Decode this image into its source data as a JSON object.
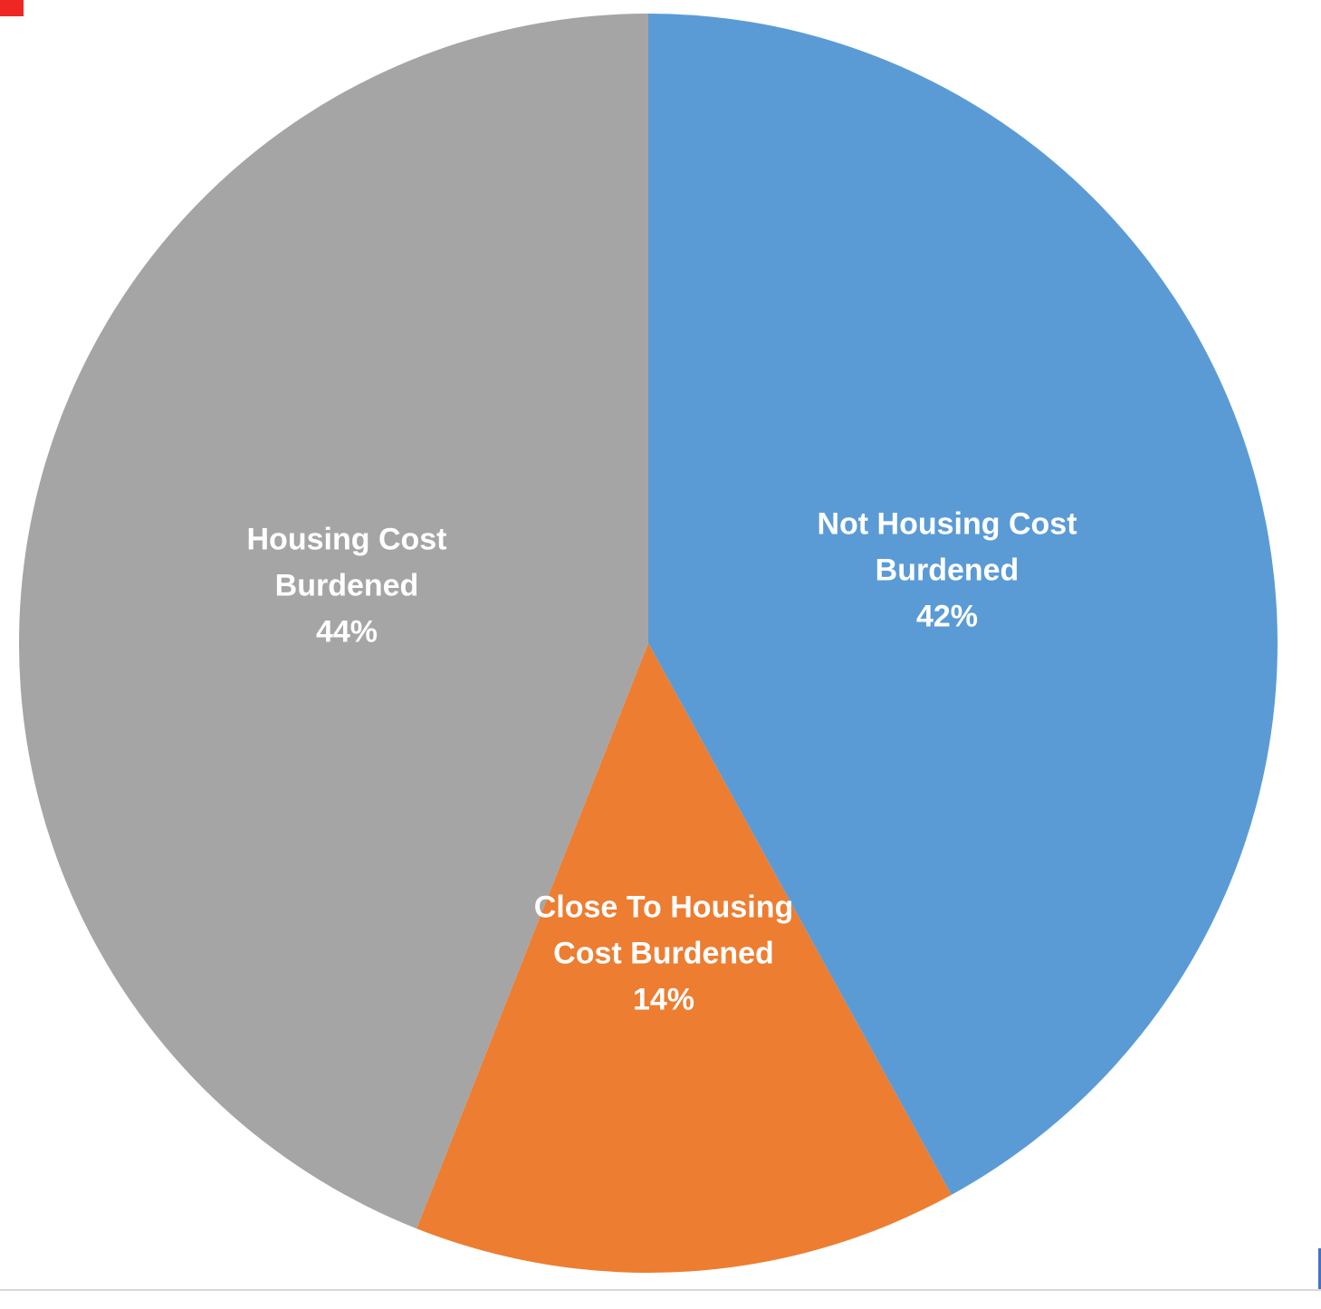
{
  "page": {
    "background": "#FFFFFF"
  },
  "artifacts": {
    "corner_marker_color": "#EE2724",
    "bottom_divider_color": "#D8D8D8",
    "right_edge_accent_color": "#4472C4"
  },
  "chart_data": {
    "type": "pie",
    "title": "",
    "legend": "none",
    "grid": "off",
    "start_angle_deg": 0,
    "direction": "clockwise",
    "data_labels": "inside",
    "data_label_color": "#FFFFFF",
    "slices": [
      {
        "label": "Not Housing Cost Burdened",
        "value": 42,
        "percent_label": "42%",
        "color": "#5B9BD5"
      },
      {
        "label": "Close To Housing Cost Burdened",
        "value": 14,
        "percent_label": "14%",
        "color": "#ED7D31"
      },
      {
        "label": "Housing Cost Burdened",
        "value": 44,
        "percent_label": "44%",
        "color": "#A5A5A5"
      }
    ]
  },
  "labels": {
    "blue": {
      "line1": "Not Housing Cost",
      "line2": "Burdened",
      "pct": "42%"
    },
    "orange": {
      "line1": "Close To Housing",
      "line2": "Cost Burdened",
      "pct": "14%"
    },
    "gray": {
      "line1": "Housing Cost",
      "line2": "Burdened",
      "pct": "44%"
    }
  }
}
